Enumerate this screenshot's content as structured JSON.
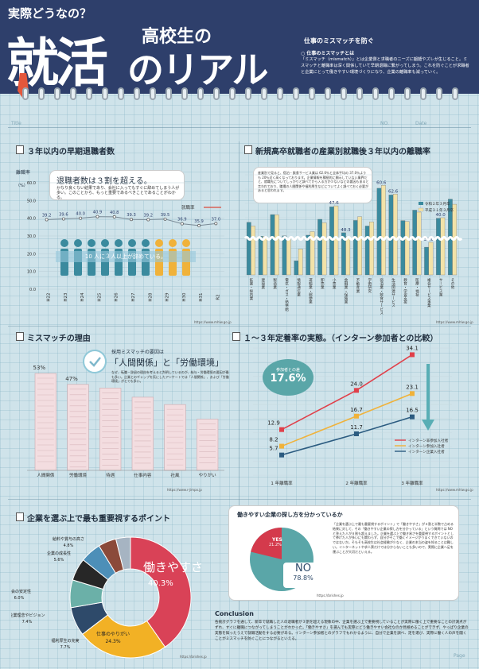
{
  "header": {
    "kicker": "実際どうなの？",
    "big": "就活",
    "sub1": "高校生の",
    "sub2": "のリアル",
    "desc_title": "仕事のミスマッチを防ぐ",
    "desc_sub": "○ 仕事のミスマッチとは",
    "desc": "「ミスマッチ（mismatch）」とは企業側と求職者のニーズに齟齬やズレが生じること。ミスマッチと離職率は深く関係していて早期退職に繋がってしまう。これを防ぐことが求職者と企業にとって働きやすい環境づくりになり、企業の離職率も減っていく。"
  },
  "page_lines": {
    "title": "Title",
    "no": "NO.",
    "date": "Date",
    "page": "Page"
  },
  "p1": {
    "title": "３年以内の早期退職者数",
    "ylabel": "離職率",
    "ylabel_unit": "（%）",
    "headline": "退職者数は３割を超える。",
    "note": "かなり良くない結果であり、会社に入ってもすぐに辞めてしまう人が多い。このことから、もっと重要であるべきことであることがわかる。",
    "legend": "就職率",
    "people_caption": "10 人に３人以上が辞めている。",
    "source": "https://www.mhlw.go.jp"
  },
  "p1_chart": {
    "type": "line",
    "categories": [
      "H22",
      "H23",
      "H24",
      "H25",
      "H26",
      "H27",
      "H28",
      "H29",
      "H30",
      "H31",
      "R2"
    ],
    "values": [
      39.2,
      39.6,
      40.0,
      40.9,
      40.8,
      39.3,
      39.2,
      39.5,
      36.9,
      35.9,
      37.0
    ],
    "value_labels": [
      "39.2",
      "39.6",
      "40.0",
      "40.9",
      "40.8",
      "39.3",
      "39.2",
      "39.5",
      "36.9",
      "35.9",
      "37.0"
    ],
    "ylim": [
      0,
      60
    ],
    "yticks": [
      "0.0",
      "10.0",
      "20.0",
      "30.0",
      "40.0",
      "50.0",
      "60.0"
    ]
  },
  "p2": {
    "title": "新規高卒就職者の産業別就職後３年以内の離職率",
    "note": "産業別で見ると、宿泊・飲食サービス業は 62.6％と全体平均の 37.0％よりも 20％近く高くなっております。企業情報を積極的に開示していない業界だと、就職先についてしっかりと調べてから入る方が少ないなどの要因もあると言われており、職場の人間関係や福利厚生などについてよく調べておく必要があると思われます。",
    "legend_a": "令和２年３月卒",
    "legend_b": "平成３１年３月卒",
    "source": "https://www.mhlw.go.jp"
  },
  "p2_chart": {
    "type": "bar",
    "categories": [
      "鉱業・採石業",
      "建設業",
      "製造業",
      "電気・ガス・熱供給",
      "情報通信業",
      "運輸業・郵便業",
      "卸売業",
      "小売業",
      "金融業・保険業",
      "不動産業",
      "学術研究",
      "宿泊業・飲食サービス",
      "生活関連サービス",
      "教育・学習支援",
      "医療・福祉",
      "複合サービス事業",
      "サービス業",
      "その他"
    ],
    "series": [
      {
        "name": "令和２年３月卒",
        "values": [
          36.8,
          27.1,
          42.2,
          27.3,
          9.9,
          27.8,
          38.9,
          47.6,
          29.5,
          38.1,
          34.2,
          60.6,
          55.9,
          38.0,
          45.3,
          19.4,
          39.6,
          53.0
        ]
      },
      {
        "name": "平成３１年３月卒",
        "values": [
          34.2,
          26.9,
          42.0,
          25.1,
          18.2,
          30.3,
          36.5,
          48.3,
          26.7,
          40.7,
          37.1,
          62.6,
          56.5,
          37.4,
          43.9,
          22.8,
          40.0,
          49.4
        ]
      }
    ],
    "value_labels": {
      "7": "47.6",
      "8": "48.3",
      "11": "60.6",
      "12": "62.6",
      "15": "39.6",
      "16": "40.0"
    },
    "ylim": [
      0,
      70
    ]
  },
  "p3": {
    "title": "ミスマッチの理由",
    "headline": "採用ミスマッチの要因は",
    "quote": "「人間関係」と「労働環境」",
    "note": "なぜ、転職・辞退の理由を考えると判明しているのが、給与・労働環境の要因が最も多い。企業とのギャップを気にしたアンケートでは「人間関係」、および「労働環境」がとても多い。",
    "source": "https://www.r-jimpo.jp"
  },
  "p3_chart": {
    "type": "bar",
    "categories": [
      "人間関係",
      "労働環境",
      "待遇",
      "仕事内容",
      "社風",
      "やりがい"
    ],
    "values": [
      53,
      47,
      45,
      40,
      36,
      28
    ],
    "value_labels": [
      "53%",
      "47%",
      "",
      "",
      "",
      ""
    ]
  },
  "p4": {
    "title": "１～３年定着率の実態。（インターン参加者との比較）",
    "badge_label": "参加者との差",
    "badge_value": "17.6%",
    "source": "https://www.mhlw.go.jp"
  },
  "p4_chart": {
    "type": "line",
    "categories": [
      "1 年離職率",
      "2 年離職率",
      "3 年離職率"
    ],
    "series": [
      {
        "name": "インターン非参加入社者",
        "color": "#e0404a",
        "values": [
          12.9,
          24.0,
          34.1
        ]
      },
      {
        "name": "インターン参加入社者",
        "color": "#f0b23a",
        "values": [
          8.2,
          16.7,
          23.1
        ]
      },
      {
        "name": "インターン企業入社者",
        "color": "#2b5b80",
        "values": [
          5.7,
          11.7,
          16.5
        ]
      }
    ],
    "value_labels": [
      [
        "12.9",
        "24.0",
        "34.1"
      ],
      [
        "8.2",
        "16.7",
        "23.1"
      ],
      [
        "5.7",
        "11.7",
        "16.5"
      ]
    ],
    "ylim": [
      0,
      36
    ]
  },
  "p5": {
    "title": "企業を選ぶ上で最も重要視するポイント",
    "main_label": "働きやすさ",
    "main_value": "40.3%",
    "source": "https://brishes.jp"
  },
  "p5_chart": {
    "type": "pie",
    "slices": [
      {
        "label": "働きやすさ",
        "value": 40.3,
        "color": "#d94257"
      },
      {
        "label": "仕事のやりがい",
        "value": 24.3,
        "color": "#f2b125"
      },
      {
        "label": "福利厚生の充実",
        "value": 7.7,
        "color": "#2e4a6a"
      },
      {
        "label": "企業理念やビジョン",
        "value": 7.4,
        "color": "#6bb0a8"
      },
      {
        "label": "社会の安定性",
        "value": 6.0,
        "color": "#272727"
      },
      {
        "label": "企業の成長性",
        "value": 5.6,
        "color": "#4d8fb8"
      },
      {
        "label": "給料や賞与の高さ",
        "value": 4.8,
        "color": "#8b4a3a"
      },
      {
        "label": "",
        "value": 3.9,
        "color": "#a6b4c2"
      }
    ],
    "value_labels": [
      "40.3%",
      "24.3%",
      "7.7%",
      "7.4%",
      "6.0%",
      "5.6%",
      "4.8%",
      ""
    ]
  },
  "p6": {
    "title": "働きやすい企業の探し方を分かっているか",
    "yes_label": "YES",
    "yes_value": "21.2%",
    "no_label": "NO",
    "no_value": "78.8%",
    "note": "「企業を選ぶ上で最も重要視するポイント」で「働きやすさ」が４割と半数で占める結果に対して、その「働きやすい企業の探し方を分かっている」という質問では NO と答えた人が８割も超えました。企業を選ぶ上で働き易さを重要視するポイントとして挙げた人が多いにも関わらず、自分がそこで働くイメージがうまくできていないのではないか。そもそも高校生は社会経験が少なく、企業の本当の姿を知ることは難しい。インターネットや求人票だけでは分からないことも多いので、実際に企業へ足を運ぶことが大切だといえる。",
    "source": "https://brishes.jp"
  },
  "conclusion": {
    "title": "Conclusion",
    "text": "各統計グラフを通して、新卒で就職した人の退職者が３割を超える現象の中、企業を選ぶ上で重要視していることが実際に働く上で重要なことの計測点がずれ、すぐに離職につながってしまうことがわかった。「働きやすさ」を選んでも実際にどう働きやすい会社なのか見極めることができず、やっぱり企業の実態を知ったうえで就職活動をする必要がある。インターン参加者とのグラフでもわかるように、自分で企業を調べ、足を運び、実際に働く人の声を聞くことがミスマッチを防ぐことにつながるといえる。"
  }
}
